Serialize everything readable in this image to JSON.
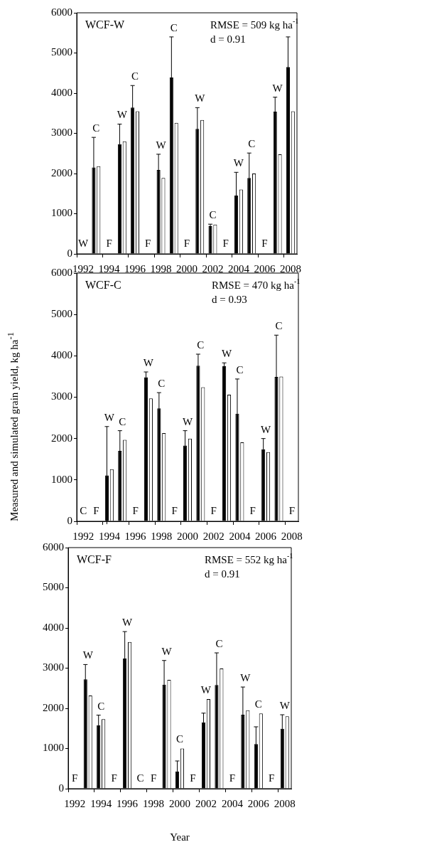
{
  "chart_data": [
    {
      "type": "bar",
      "title": "WCF-W",
      "categories": [
        "1992",
        null,
        "1994",
        null,
        "1996",
        null,
        "1998",
        null,
        "2000",
        null,
        "2002",
        null,
        "2004",
        null,
        "2006",
        null,
        "2008"
      ],
      "series": [
        {
          "color": "#000000",
          "values": [
            null,
            2150,
            null,
            2730,
            3640,
            null,
            2090,
            4390,
            null,
            3110,
            690,
            null,
            1450,
            1890,
            null,
            3540,
            4650
          ],
          "errors": [
            null,
            750,
            null,
            500,
            550,
            null,
            390,
            1010,
            null,
            530,
            50,
            null,
            580,
            620,
            null,
            360,
            750
          ]
        },
        {
          "color": "#ffffff",
          "values": [
            null,
            2180,
            null,
            2800,
            3550,
            null,
            1890,
            3260,
            null,
            3330,
            730,
            null,
            1600,
            2000,
            null,
            2480,
            3550
          ]
        }
      ],
      "ylim": [
        0,
        6000
      ],
      "yticks": [
        0,
        1000,
        2000,
        3000,
        4000,
        5000,
        6000
      ],
      "annotations": [
        "RMSE = 509 kg ha$^{-1}$",
        "d = 0.91",
        "W",
        "C",
        "F",
        "W",
        "C",
        "F",
        "W",
        "C",
        "F",
        "W",
        "C",
        "F",
        "W",
        "C",
        "F",
        "W"
      ]
    },
    {
      "type": "bar",
      "title": "WCF-C",
      "ylabel": "Measured and simulated grain yield, kg ha$^{-1}$",
      "categories": [
        "1992",
        null,
        "1994",
        null,
        "1996",
        null,
        "1998",
        null,
        "2000",
        null,
        "2002",
        null,
        "2004",
        null,
        "2006",
        null,
        "2008"
      ],
      "series": [
        {
          "color": "#000000",
          "values": [
            null,
            null,
            1110,
            1700,
            null,
            3480,
            2730,
            null,
            1830,
            3760,
            null,
            3750,
            2600,
            null,
            1740,
            3490,
            null
          ],
          "errors": [
            null,
            null,
            1180,
            490,
            null,
            130,
            380,
            null,
            360,
            280,
            null,
            80,
            840,
            null,
            260,
            1010,
            null
          ]
        },
        {
          "color": "#ffffff",
          "values": [
            null,
            null,
            1260,
            1970,
            null,
            2970,
            2130,
            null,
            2000,
            3240,
            null,
            3060,
            1910,
            null,
            1670,
            3500,
            null
          ]
        }
      ],
      "ylim": [
        0,
        6000
      ],
      "yticks": [
        0,
        1000,
        2000,
        3000,
        4000,
        5000,
        6000
      ],
      "annotations": [
        "RMSE = 470 kg ha$^{-1}$",
        "d = 0.93",
        "C",
        "F",
        "W",
        "C",
        "F",
        "W",
        "C",
        "F",
        "W",
        "C",
        "F",
        "W",
        "C",
        "F",
        "W",
        "C",
        "F"
      ]
    },
    {
      "type": "bar",
      "title": "WCF-F",
      "xlabel": "Year",
      "categories": [
        "1992",
        null,
        "1994",
        null,
        "1996",
        null,
        "1998",
        null,
        "2000",
        null,
        "2002",
        null,
        "2004",
        null,
        "2006",
        null,
        "2008"
      ],
      "series": [
        {
          "color": "#000000",
          "values": [
            null,
            2720,
            1580,
            null,
            3240,
            null,
            null,
            2590,
            430,
            null,
            1650,
            2580,
            null,
            1840,
            1110,
            null,
            1490
          ],
          "errors": [
            null,
            370,
            250,
            null,
            670,
            null,
            null,
            600,
            260,
            null,
            230,
            800,
            null,
            690,
            430,
            null,
            350
          ]
        },
        {
          "color": "#ffffff",
          "values": [
            null,
            2320,
            1730,
            null,
            3650,
            null,
            null,
            2710,
            1000,
            null,
            2230,
            2990,
            null,
            1950,
            1870,
            null,
            1800
          ]
        }
      ],
      "ylim": [
        0,
        6000
      ],
      "yticks": [
        0,
        1000,
        2000,
        3000,
        4000,
        5000,
        6000
      ],
      "annotations": [
        "RMSE = 552 kg ha$^{-1}$",
        "d = 0.91",
        "F",
        "W",
        "C",
        "F",
        "W",
        "C",
        "F",
        "W",
        "C",
        "F",
        "W",
        "C",
        "F",
        "W",
        "C",
        "F",
        "W"
      ]
    }
  ]
}
